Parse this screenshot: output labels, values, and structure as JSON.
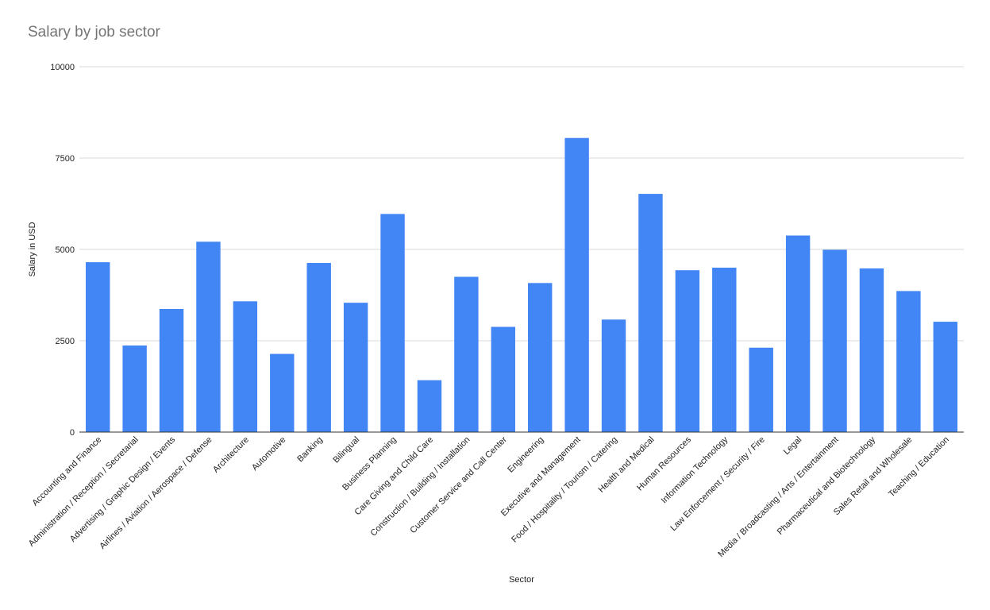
{
  "chart_data": {
    "type": "bar",
    "title": "Salary by job sector",
    "xlabel": "Sector",
    "ylabel": "Salary in USD",
    "ylim": [
      0,
      10000
    ],
    "yticks": [
      0,
      2500,
      5000,
      7500,
      10000
    ],
    "grid": true,
    "legend": "none",
    "bar_color": "#4285F4",
    "categories": [
      "Accounting and Finance",
      "Administration / Reception / Secretarial",
      "Advertising / Graphic Design / Events",
      "Airlines / Aviation / Aerospace / Defense",
      "Architecture",
      "Automotive",
      "Banking",
      "Bilingual",
      "Business Planning",
      "Care Giving and Child Care",
      "Construction / Building / Installation",
      "Customer Service and Call Center",
      "Engineering",
      "Executive and Management",
      "Food / Hospitality / Tourism / Catering",
      "Health and Medical",
      "Human Resources",
      "Information Technology",
      "Law Enforcement / Security / Fire",
      "Legal",
      "Media / Broadcasting / Arts / Entertainment",
      "Pharmaceutical and Biotechnology",
      "Sales Retail and Wholesale",
      "Teaching / Education"
    ],
    "values": [
      4650,
      2370,
      3370,
      5210,
      3580,
      2140,
      4630,
      3540,
      5970,
      1420,
      4250,
      2880,
      4080,
      8050,
      3080,
      6520,
      4430,
      4500,
      2310,
      5380,
      4990,
      4480,
      3860,
      3020
    ]
  }
}
